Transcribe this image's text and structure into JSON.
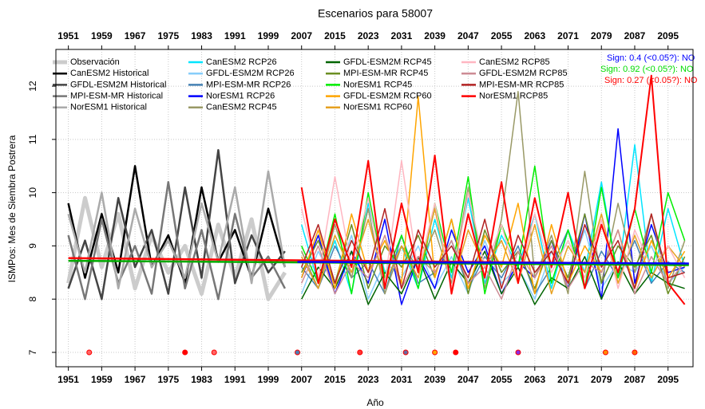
{
  "chart_data": {
    "type": "line",
    "title": "Escenarios  para 58007",
    "xlabel": "Año",
    "ylabel": "ISMPos: Mes de Siembra Postrera",
    "xlim": [
      1948,
      2101
    ],
    "ylim": [
      6.73,
      12.69
    ],
    "xticks": [
      1951,
      1959,
      1967,
      1975,
      1983,
      1991,
      1999,
      2007,
      2015,
      2023,
      2031,
      2039,
      2047,
      2055,
      2063,
      2071,
      2079,
      2087,
      2095
    ],
    "yticks": [
      7,
      8,
      9,
      10,
      11,
      12
    ],
    "grid": true,
    "x": [
      1951,
      1955,
      1959,
      1963,
      1967,
      1971,
      1975,
      1979,
      1983,
      1987,
      1991,
      1995,
      1999,
      2003,
      2007,
      2011,
      2015,
      2019,
      2023,
      2027,
      2031,
      2035,
      2039,
      2043,
      2047,
      2051,
      2055,
      2059,
      2063,
      2067,
      2071,
      2075,
      2079,
      2083,
      2087,
      2091,
      2095,
      2099
    ],
    "series": [
      {
        "name": "Observación",
        "color": "#cccccc",
        "width": 5,
        "values": [
          8.3,
          9.9,
          8.6,
          9.6,
          8.2,
          9.2,
          8.5,
          9.0,
          8.1,
          9.4,
          8.4,
          9.5,
          8.0,
          8.5,
          null,
          null,
          null,
          null,
          null,
          null,
          null,
          null,
          null,
          null,
          null,
          null,
          null,
          null,
          null,
          null,
          null,
          null,
          null,
          null,
          null,
          null,
          null,
          null
        ]
      },
      {
        "name": "CanESM2 Historical",
        "color": "#000000",
        "width": 2.5,
        "values": [
          9.8,
          8.4,
          9.6,
          8.5,
          10.5,
          8.6,
          9.2,
          8.3,
          10.1,
          8.7,
          9.3,
          8.4,
          9.7,
          8.6,
          null,
          null,
          null,
          null,
          null,
          null,
          null,
          null,
          null,
          null,
          null,
          null,
          null,
          null,
          null,
          null,
          null,
          null,
          null,
          null,
          null,
          null,
          null,
          null
        ]
      },
      {
        "name": "GFDL-ESM2M Historical",
        "color": "#444444",
        "width": 2.5,
        "values": [
          8.2,
          9.1,
          8.0,
          9.9,
          8.6,
          9.3,
          8.1,
          10.1,
          8.4,
          10.8,
          8.3,
          9.2,
          8.5,
          8.9,
          null,
          null,
          null,
          null,
          null,
          null,
          null,
          null,
          null,
          null,
          null,
          null,
          null,
          null,
          null,
          null,
          null,
          null,
          null,
          null,
          null,
          null,
          null,
          null
        ]
      },
      {
        "name": "MPI-ESM-MR Historical",
        "color": "#777777",
        "width": 2.5,
        "values": [
          9.2,
          8.0,
          9.5,
          8.3,
          9.0,
          8.1,
          10.2,
          8.2,
          9.3,
          8.0,
          9.6,
          8.4,
          8.8,
          8.2,
          null,
          null,
          null,
          null,
          null,
          null,
          null,
          null,
          null,
          null,
          null,
          null,
          null,
          null,
          null,
          null,
          null,
          null,
          null,
          null,
          null,
          null,
          null,
          null
        ]
      },
      {
        "name": "NorESM1 Historical",
        "color": "#aaaaaa",
        "width": 2.5,
        "values": [
          9.6,
          8.5,
          10.0,
          8.2,
          9.7,
          8.6,
          9.1,
          8.4,
          9.8,
          8.7,
          10.1,
          8.3,
          10.4,
          8.6,
          null,
          null,
          null,
          null,
          null,
          null,
          null,
          null,
          null,
          null,
          null,
          null,
          null,
          null,
          null,
          null,
          null,
          null,
          null,
          null,
          null,
          null,
          null,
          null
        ]
      },
      {
        "name": "CanESM2 RCP26",
        "color": "#00e5ff",
        "width": 1.5,
        "values": [
          null,
          null,
          null,
          null,
          null,
          null,
          null,
          null,
          null,
          null,
          null,
          null,
          null,
          null,
          9.4,
          8.3,
          9.1,
          8.1,
          9.8,
          8.5,
          9.0,
          8.2,
          9.5,
          8.4,
          9.9,
          8.3,
          9.2,
          8.6,
          9.6,
          8.2,
          9.3,
          8.5,
          10.2,
          8.4,
          10.9,
          8.3,
          9.7,
          8.6
        ]
      },
      {
        "name": "GFDL-ESM2M RCP26",
        "color": "#87cefa",
        "width": 1.5,
        "values": [
          null,
          null,
          null,
          null,
          null,
          null,
          null,
          null,
          null,
          null,
          null,
          null,
          null,
          null,
          8.1,
          8.9,
          8.3,
          9.2,
          8.0,
          8.7,
          8.4,
          9.0,
          8.2,
          8.8,
          8.1,
          9.1,
          8.3,
          8.6,
          8.0,
          8.9,
          8.4,
          9.3,
          8.2,
          8.7,
          8.5,
          9.0,
          8.3,
          8.6
        ]
      },
      {
        "name": "MPI-ESM-MR RCP26",
        "color": "#4682b4",
        "width": 1.5,
        "values": [
          null,
          null,
          null,
          null,
          null,
          null,
          null,
          null,
          null,
          null,
          null,
          null,
          null,
          null,
          8.6,
          8.2,
          9.0,
          8.4,
          8.7,
          8.1,
          9.2,
          8.3,
          8.5,
          9.1,
          8.2,
          8.8,
          8.4,
          9.0,
          8.1,
          8.6,
          9.3,
          8.2,
          8.9,
          8.4,
          9.1,
          8.3,
          8.7,
          8.5
        ]
      },
      {
        "name": "NorESM1 RCP26",
        "color": "#0000ff",
        "width": 1.5,
        "values": [
          null,
          null,
          null,
          null,
          null,
          null,
          null,
          null,
          null,
          null,
          null,
          null,
          null,
          null,
          8.4,
          9.2,
          8.1,
          8.9,
          8.3,
          9.5,
          7.9,
          8.8,
          8.2,
          9.3,
          8.5,
          9.0,
          8.1,
          8.7,
          8.4,
          9.1,
          8.2,
          9.6,
          8.0,
          11.2,
          8.3,
          9.4,
          8.5,
          8.6
        ]
      },
      {
        "name": "CanESM2 RCP45",
        "color": "#999966",
        "width": 1.5,
        "values": [
          null,
          null,
          null,
          null,
          null,
          null,
          null,
          null,
          null,
          null,
          null,
          null,
          null,
          null,
          8.9,
          8.2,
          9.4,
          8.4,
          9.7,
          8.1,
          9.0,
          8.6,
          9.3,
          8.3,
          10.1,
          8.2,
          9.5,
          11.9,
          8.4,
          9.2,
          8.1,
          10.4,
          8.3,
          9.8,
          8.5,
          9.6,
          8.2,
          9.1
        ]
      },
      {
        "name": "GFDL-ESM2M RCP45",
        "color": "#006400",
        "width": 1.5,
        "values": [
          null,
          null,
          null,
          null,
          null,
          null,
          null,
          null,
          null,
          null,
          null,
          null,
          null,
          null,
          8.0,
          8.6,
          8.2,
          8.9,
          7.9,
          8.5,
          8.1,
          8.8,
          8.0,
          8.7,
          8.3,
          8.9,
          8.1,
          8.6,
          7.9,
          8.4,
          8.2,
          8.8,
          8.0,
          8.7,
          8.1,
          8.5,
          8.3,
          8.2
        ]
      },
      {
        "name": "MPI-ESM-MR RCP45",
        "color": "#6b8e23",
        "width": 1.5,
        "values": [
          null,
          null,
          null,
          null,
          null,
          null,
          null,
          null,
          null,
          null,
          null,
          null,
          null,
          null,
          8.5,
          9.1,
          8.3,
          9.4,
          8.2,
          9.0,
          8.6,
          9.2,
          8.4,
          9.5,
          8.1,
          9.3,
          8.5,
          8.9,
          8.2,
          9.1,
          8.4,
          9.6,
          8.3,
          9.0,
          8.6,
          9.2,
          8.1,
          8.8
        ]
      },
      {
        "name": "NorESM1 RCP45",
        "color": "#00ee00",
        "width": 1.5,
        "values": [
          null,
          null,
          null,
          null,
          null,
          null,
          null,
          null,
          null,
          null,
          null,
          null,
          null,
          null,
          9.0,
          8.3,
          9.6,
          8.1,
          10.0,
          8.4,
          9.2,
          8.2,
          9.8,
          8.5,
          10.3,
          8.1,
          9.4,
          8.6,
          10.5,
          8.3,
          9.3,
          8.2,
          10.1,
          8.4,
          9.7,
          8.5,
          10.0,
          9.1
        ]
      },
      {
        "name": "GFDL-ESM2M RCP60",
        "color": "#ffa500",
        "width": 1.5,
        "values": [
          null,
          null,
          null,
          null,
          null,
          null,
          null,
          null,
          null,
          null,
          null,
          null,
          null,
          null,
          8.4,
          9.3,
          8.2,
          9.6,
          8.5,
          9.1,
          8.3,
          11.8,
          8.4,
          9.5,
          8.2,
          9.2,
          8.6,
          9.8,
          8.1,
          9.4,
          8.3,
          9.0,
          8.5,
          9.3,
          8.2,
          9.1,
          8.4,
          8.9
        ]
      },
      {
        "name": "NorESM1 RCP60",
        "color": "#e6a020",
        "width": 1.5,
        "values": [
          null,
          null,
          null,
          null,
          null,
          null,
          null,
          null,
          null,
          null,
          null,
          null,
          null,
          null,
          8.8,
          8.2,
          9.2,
          8.5,
          9.5,
          8.3,
          9.0,
          8.4,
          9.7,
          8.2,
          9.3,
          8.6,
          9.1,
          8.3,
          9.4,
          8.1,
          9.0,
          8.5,
          9.6,
          8.3,
          9.2,
          8.4,
          9.0,
          8.6
        ]
      },
      {
        "name": "CanESM2 RCP85",
        "color": "#ffb6c1",
        "width": 1.5,
        "values": [
          null,
          null,
          null,
          null,
          null,
          null,
          null,
          null,
          null,
          null,
          null,
          null,
          null,
          null,
          9.7,
          8.4,
          10.3,
          8.6,
          9.9,
          8.3,
          10.6,
          8.5,
          9.8,
          8.2,
          10.0,
          8.6,
          9.4,
          8.3,
          9.6,
          8.5,
          9.1,
          8.4,
          9.5,
          8.2,
          9.3,
          8.6,
          9.0,
          8.4
        ]
      },
      {
        "name": "GFDL-ESM2M RCP85",
        "color": "#cd8c95",
        "width": 1.5,
        "values": [
          null,
          null,
          null,
          null,
          null,
          null,
          null,
          null,
          null,
          null,
          null,
          null,
          null,
          null,
          8.3,
          9.0,
          8.1,
          8.7,
          8.4,
          9.2,
          8.2,
          8.8,
          8.5,
          9.1,
          8.3,
          8.6,
          8.0,
          8.9,
          8.4,
          9.0,
          8.2,
          8.7,
          8.5,
          9.3,
          8.1,
          8.8,
          8.3,
          8.7
        ]
      },
      {
        "name": "MPI-ESM-MR RCP85",
        "color": "#b22222",
        "width": 1.5,
        "values": [
          null,
          null,
          null,
          null,
          null,
          null,
          null,
          null,
          null,
          null,
          null,
          null,
          null,
          null,
          8.6,
          9.4,
          8.3,
          9.1,
          8.5,
          9.7,
          8.2,
          9.3,
          8.6,
          9.0,
          8.4,
          9.5,
          8.2,
          9.2,
          8.5,
          8.9,
          8.3,
          9.4,
          8.6,
          9.1,
          8.2,
          9.6,
          8.4,
          8.5
        ]
      },
      {
        "name": "NorESM1 RCP85",
        "color": "#ff0000",
        "width": 2,
        "values": [
          null,
          null,
          null,
          null,
          null,
          null,
          null,
          null,
          null,
          null,
          null,
          null,
          null,
          null,
          10.1,
          8.3,
          9.5,
          8.6,
          10.6,
          8.2,
          9.8,
          8.5,
          10.7,
          8.1,
          9.6,
          8.4,
          10.2,
          8.3,
          9.9,
          8.6,
          10.0,
          8.2,
          9.4,
          8.5,
          9.7,
          12.2,
          8.3,
          7.9
        ]
      }
    ],
    "trend_lines": [
      {
        "color": "#ff0000",
        "x": [
          1951,
          2100
        ],
        "values": [
          8.77,
          8.66
        ]
      },
      {
        "color": "#00aa00",
        "x": [
          1951,
          2100
        ],
        "values": [
          8.72,
          8.64
        ]
      },
      {
        "color": "#0000ff",
        "x": [
          2006,
          2100
        ],
        "values": [
          8.7,
          8.67
        ]
      }
    ],
    "markers": {
      "x": [
        1956,
        1979,
        1986,
        2006,
        2021,
        2032,
        2039,
        2044,
        2059,
        2080,
        2087
      ],
      "values": [
        7,
        7,
        7,
        7,
        7,
        7,
        7,
        7,
        7,
        7,
        7
      ],
      "colors": [
        "#ff6666",
        "#ff0000",
        "#ff6666",
        "#4a7fb5",
        "#ff3333",
        "#6a6aa0",
        "#ffa500",
        "#ff0000",
        "#8a2be2",
        "#ff8c00",
        "#ff6600"
      ]
    },
    "annotations": [
      {
        "text": "Sign: 0.4  (<0.05?):  NO",
        "color": "#0000ff"
      },
      {
        "text": "Sign: 0.92  (<0.05?):  NO",
        "color": "#00dd00"
      },
      {
        "text": "Sign: 0.27  (<0.05?):  NO",
        "color": "#ff0000"
      }
    ]
  }
}
